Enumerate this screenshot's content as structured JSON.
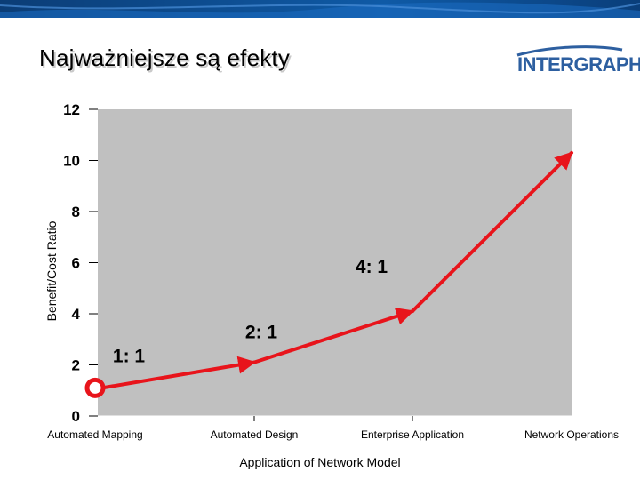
{
  "header": {
    "title": "Najważniejsze są efekty",
    "logo_text": "INTERGRAPH",
    "colors": {
      "topbar": "#0f5aa6",
      "logo": "#2d5fa0"
    }
  },
  "chart_data": {
    "type": "line",
    "title": "",
    "xlabel": "Application of Network Model",
    "ylabel": "Benefit/Cost Ratio",
    "ylim": [
      0,
      12
    ],
    "y_ticks": [
      0,
      2,
      4,
      6,
      8,
      10,
      12
    ],
    "grid": false,
    "categories": [
      "Automated Mapping",
      "Automated Design",
      "Enterprise Application",
      "Network Operations"
    ],
    "series": [
      {
        "x": [
          0,
          1,
          2,
          3
        ],
        "values": [
          1.1,
          2.1,
          4.1,
          10.3
        ],
        "color": "#e8141b"
      }
    ],
    "annotations": [
      {
        "text": "1: 1",
        "x": 0,
        "y": 1
      },
      {
        "text": "2: 1",
        "x": 1,
        "y": 2
      },
      {
        "text": "4: 1",
        "x": 2,
        "y": 4
      }
    ],
    "colors": {
      "plot_background": "#c0c0c0",
      "line": "#e8141b",
      "marker_ring": "#e8141b"
    }
  }
}
